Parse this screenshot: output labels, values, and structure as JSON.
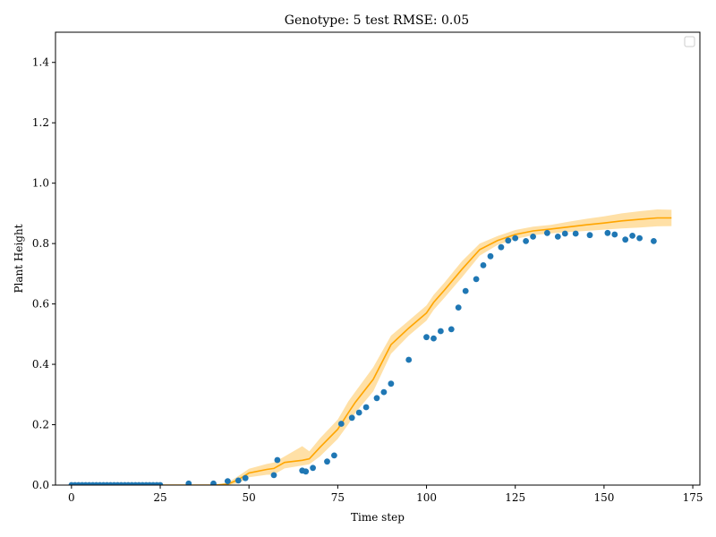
{
  "chart_data": {
    "type": "scatter",
    "title": "Genotype: 5 test RMSE: 0.05",
    "xlabel": "Time step",
    "ylabel": "Plant Height",
    "xlim": [
      -4.5,
      177
    ],
    "ylim": [
      0,
      1.5
    ],
    "xticks": [
      0,
      25,
      50,
      75,
      100,
      125,
      150,
      175
    ],
    "xtick_labels": [
      "0",
      "25",
      "50",
      "75",
      "100",
      "125",
      "150",
      "175"
    ],
    "yticks": [
      0.0,
      0.2,
      0.4,
      0.6,
      0.8,
      1.0,
      1.2,
      1.4
    ],
    "ytick_labels": [
      "0.0",
      "0.2",
      "0.4",
      "0.6",
      "0.8",
      "1.0",
      "1.2",
      "1.4"
    ],
    "grid": false,
    "legend": {
      "placement": "top-right",
      "entries": []
    },
    "colors": {
      "scatter": "#1f77b4",
      "line": "#ffa500",
      "band": "#ffa500"
    },
    "series": [
      {
        "kind": "scatter",
        "x": [
          0,
          1,
          2,
          3,
          4,
          5,
          6,
          7,
          8,
          9,
          10,
          11,
          12,
          13,
          14,
          15,
          16,
          17,
          18,
          19,
          20,
          21,
          22,
          23,
          24,
          25,
          33,
          40,
          44,
          47,
          49,
          57,
          58,
          65,
          66,
          68,
          72,
          74,
          76,
          79,
          81,
          83,
          86,
          88,
          90,
          95,
          100,
          102,
          104,
          107,
          109,
          111,
          114,
          116,
          118,
          121,
          123,
          125,
          128,
          130,
          134,
          137,
          139,
          142,
          146,
          151,
          153,
          156,
          158,
          160,
          164
        ],
        "y": [
          0,
          0,
          0,
          0,
          0,
          0,
          0,
          0,
          0,
          0,
          0,
          0,
          0,
          0,
          0,
          0,
          0,
          0,
          0,
          0,
          0,
          0,
          0,
          0,
          0,
          0,
          0.005,
          0.005,
          0.013,
          0.015,
          0.023,
          0.033,
          0.083,
          0.048,
          0.045,
          0.057,
          0.078,
          0.098,
          0.203,
          0.223,
          0.24,
          0.258,
          0.288,
          0.308,
          0.336,
          0.415,
          0.49,
          0.486,
          0.51,
          0.516,
          0.588,
          0.643,
          0.682,
          0.728,
          0.758,
          0.788,
          0.81,
          0.818,
          0.808,
          0.823,
          0.835,
          0.823,
          0.833,
          0.833,
          0.828,
          0.835,
          0.83,
          0.813,
          0.826,
          0.818,
          0.808
        ]
      },
      {
        "kind": "line",
        "x": [
          0,
          10,
          20,
          30,
          40,
          44,
          47,
          50,
          55,
          57,
          60,
          65,
          67,
          70,
          75,
          78,
          80,
          85,
          90,
          95,
          100,
          102,
          105,
          110,
          115,
          120,
          125,
          130,
          135,
          140,
          145,
          150,
          155,
          160,
          165,
          169
        ],
        "y": [
          0,
          0,
          0,
          0,
          0,
          0.003,
          0.018,
          0.04,
          0.052,
          0.055,
          0.075,
          0.082,
          0.087,
          0.125,
          0.185,
          0.24,
          0.275,
          0.35,
          0.465,
          0.52,
          0.57,
          0.605,
          0.645,
          0.715,
          0.78,
          0.81,
          0.83,
          0.842,
          0.848,
          0.855,
          0.862,
          0.868,
          0.875,
          0.88,
          0.885,
          0.885
        ],
        "band_lower": [
          0,
          0,
          0,
          0,
          0,
          0,
          0.006,
          0.026,
          0.034,
          0.035,
          0.055,
          0.065,
          0.069,
          0.095,
          0.153,
          0.202,
          0.24,
          0.31,
          0.435,
          0.495,
          0.545,
          0.58,
          0.62,
          0.688,
          0.76,
          0.795,
          0.815,
          0.828,
          0.834,
          0.838,
          0.842,
          0.846,
          0.85,
          0.853,
          0.857,
          0.858
        ],
        "band_upper": [
          0,
          0,
          0,
          0,
          0,
          0.008,
          0.03,
          0.054,
          0.07,
          0.075,
          0.095,
          0.129,
          0.112,
          0.155,
          0.217,
          0.278,
          0.31,
          0.39,
          0.495,
          0.545,
          0.595,
          0.63,
          0.67,
          0.742,
          0.8,
          0.825,
          0.845,
          0.856,
          0.862,
          0.872,
          0.882,
          0.89,
          0.9,
          0.907,
          0.913,
          0.912
        ]
      }
    ]
  }
}
